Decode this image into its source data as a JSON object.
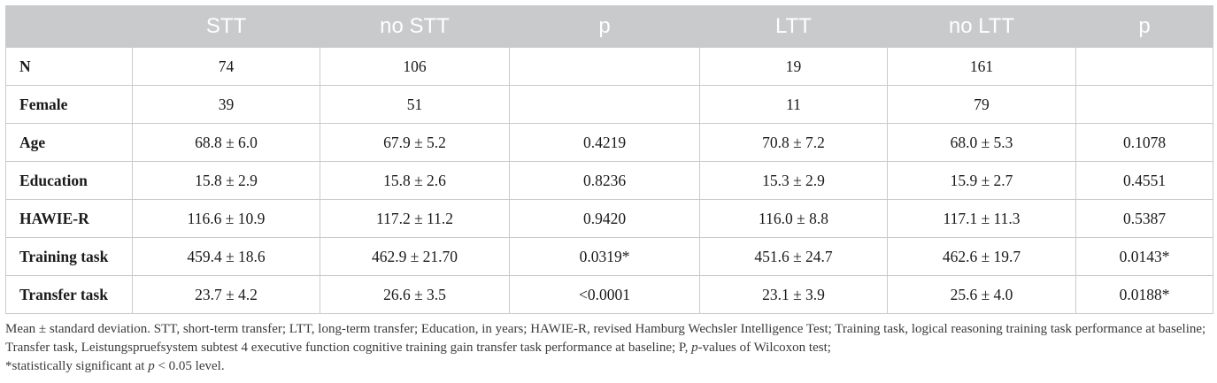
{
  "table": {
    "headers": [
      "",
      "STT",
      "no STT",
      "p",
      "LTT",
      "no LTT",
      "p"
    ],
    "rows": [
      {
        "label": "N",
        "cells": [
          "74",
          "106",
          "",
          "19",
          "161",
          ""
        ]
      },
      {
        "label": "Female",
        "cells": [
          "39",
          "51",
          "",
          "11",
          "79",
          ""
        ]
      },
      {
        "label": "Age",
        "cells": [
          "68.8 ± 6.0",
          "67.9 ± 5.2",
          "0.4219",
          "70.8 ± 7.2",
          "68.0 ± 5.3",
          "0.1078"
        ]
      },
      {
        "label": "Education",
        "cells": [
          "15.8 ± 2.9",
          "15.8 ± 2.6",
          "0.8236",
          "15.3 ± 2.9",
          "15.9 ± 2.7",
          "0.4551"
        ]
      },
      {
        "label": "HAWIE-R",
        "cells": [
          "116.6 ± 10.9",
          "117.2 ± 11.2",
          "0.9420",
          "116.0 ± 8.8",
          "117.1 ± 11.3",
          "0.5387"
        ]
      },
      {
        "label": "Training task",
        "cells": [
          "459.4 ± 18.6",
          "462.9 ± 21.70",
          "0.0319*",
          "451.6 ± 24.7",
          "462.6 ± 19.7",
          "0.0143*"
        ]
      },
      {
        "label": "Transfer task",
        "cells": [
          "23.7 ± 4.2",
          "26.6 ± 3.5",
          "<0.0001",
          "23.1 ± 3.9",
          "25.6 ± 4.0",
          "0.0188*"
        ]
      }
    ]
  },
  "footnote": {
    "main_before_p": "Mean ± standard deviation. STT, short-term transfer; LTT, long-term transfer; Education, in years; HAWIE-R, revised Hamburg Wechsler Intelligence Test; Training task, logical reasoning training task performance at baseline; Transfer task, Leistungspruefsystem subtest 4 executive function cognitive training gain transfer task performance at baseline; P, ",
    "main_p_italic": "p",
    "main_after_p": "-values of Wilcoxon test;",
    "sig_before_p": "*statistically significant at ",
    "sig_p_italic": "p",
    "sig_after_p": " < 0.05 level."
  }
}
